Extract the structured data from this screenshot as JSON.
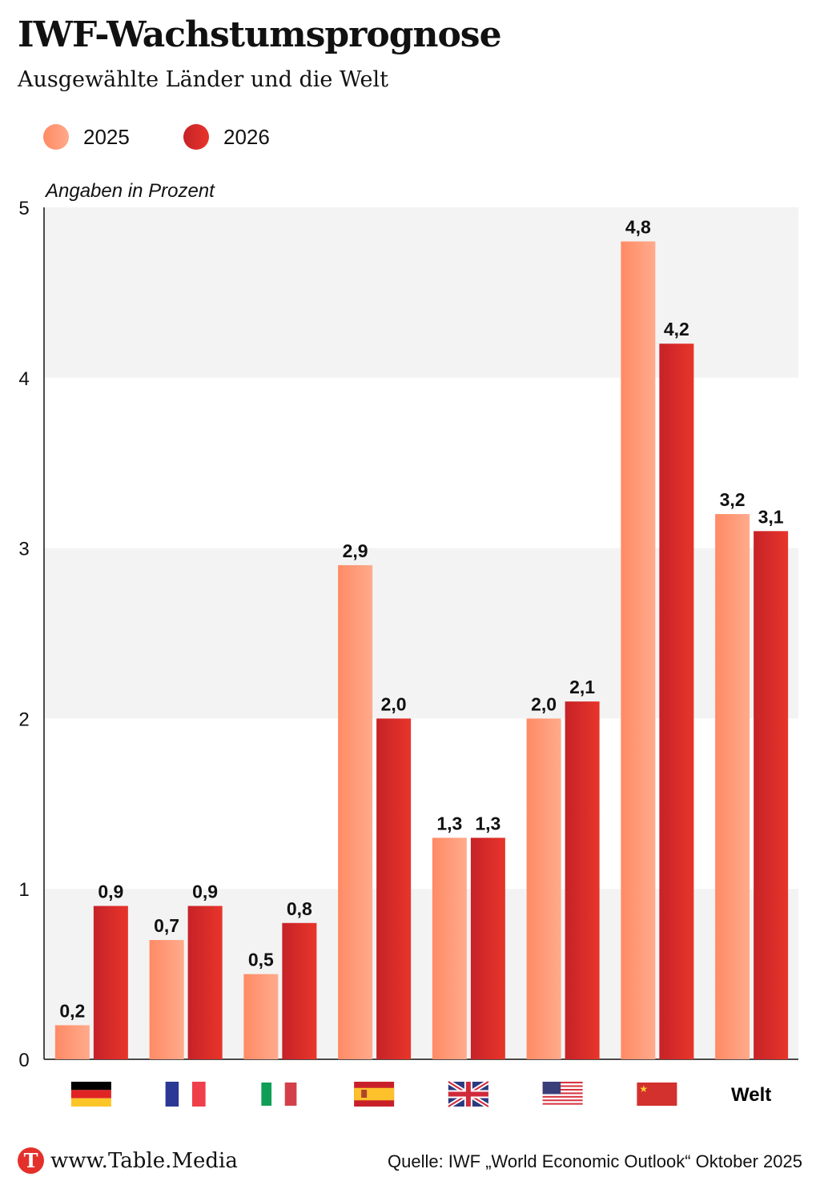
{
  "header": {
    "title": "IWF-Wachstumsprognose",
    "subtitle": "Ausgewählte Länder und die Welt"
  },
  "colors": {
    "c2025_start": "#ff8a65",
    "c2025_end": "#ffaa8a",
    "c2026_start": "#c62228",
    "c2026_end": "#e8352a",
    "band": "#f3f3f3"
  },
  "chart_data": {
    "type": "bar",
    "ylabel": "Angaben in Prozent",
    "ylim": [
      0,
      5
    ],
    "yticks": [
      "0",
      "1",
      "2",
      "3",
      "4",
      "5"
    ],
    "categories": [
      "germany-flag",
      "france-flag",
      "italy-flag",
      "spain-flag",
      "uk-flag",
      "usa-flag",
      "china-flag",
      "Welt"
    ],
    "series": [
      {
        "name": "2025",
        "values": [
          0.2,
          0.7,
          0.5,
          2.9,
          1.3,
          2.0,
          4.8,
          3.2
        ],
        "labels": [
          "0,2",
          "0,7",
          "0,5",
          "2,9",
          "1,3",
          "2,0",
          "4,8",
          "3,2"
        ]
      },
      {
        "name": "2026",
        "values": [
          0.9,
          0.9,
          0.8,
          2.0,
          1.3,
          2.1,
          4.2,
          3.1
        ],
        "labels": [
          "0,9",
          "0,9",
          "0,8",
          "2,0",
          "1,3",
          "2,1",
          "4,2",
          "3,1"
        ]
      }
    ]
  },
  "footer": {
    "logo_letter": "T",
    "site": "www.Table.Media",
    "source": "Quelle: IWF „World Economic Outlook“ Oktober 2025"
  }
}
